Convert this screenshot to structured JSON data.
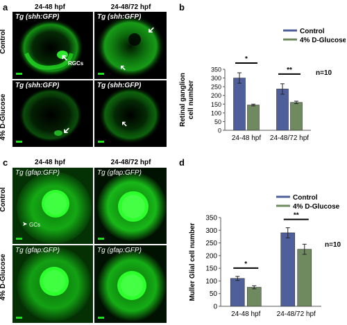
{
  "panel_a": {
    "letter": "a",
    "col_headers": [
      "24-48 hpf",
      "24-48/72 hpf"
    ],
    "row_labels": [
      "Control",
      "4% D-Glucose"
    ],
    "tiles": [
      {
        "title": "Tg (shh:GFP)",
        "annotation": "RGCs"
      },
      {
        "title": "Tg (shh:GFP)",
        "annotation": ""
      },
      {
        "title": "Tg (shh:GFP)",
        "annotation": ""
      },
      {
        "title": "Tg (shh:GFP)",
        "annotation": ""
      }
    ]
  },
  "panel_c": {
    "letter": "c",
    "col_headers": [
      "24-48 hpf",
      "24-48/72 hpf"
    ],
    "row_labels": [
      "Control",
      "4% D-Glucose"
    ],
    "tiles": [
      {
        "title_prefix": "Tg (",
        "title_gene": "gfap:GFP",
        "title_suffix": ")",
        "annotation": "GCs"
      },
      {
        "title_prefix": "Tg (",
        "title_gene": "gfap:GFP",
        "title_suffix": ")",
        "annotation": ""
      },
      {
        "title_prefix": "Tg (",
        "title_gene": "gfap:GFP",
        "title_suffix": ")",
        "annotation": ""
      },
      {
        "title_prefix": "Tg (",
        "title_gene": "gfap:GFP",
        "title_suffix": ")",
        "annotation": ""
      }
    ]
  },
  "panel_b": {
    "letter": "b",
    "n_label": "n=10"
  },
  "panel_d": {
    "letter": "d",
    "n_label": "n=10"
  },
  "colors": {
    "control": "#4e5f9c",
    "glucose": "#6e8a5e",
    "gfp": "#19e619"
  },
  "chart_data": [
    {
      "type": "bar",
      "panel": "b",
      "categories": [
        "24-48 hpf",
        "24-48/72 hpf"
      ],
      "series": [
        {
          "name": "Control",
          "values": [
            300,
            237
          ],
          "errors": [
            30,
            30
          ]
        },
        {
          "name": "4% D-Glucose",
          "values": [
            145,
            160
          ],
          "errors": [
            5,
            7
          ]
        }
      ],
      "significance": [
        "*",
        "**"
      ],
      "ylabel": "Retinal ganglion cell number",
      "ylim": [
        0,
        350
      ],
      "yticks": [
        0,
        50,
        100,
        150,
        200,
        250,
        300,
        350
      ],
      "legend_position": "top"
    },
    {
      "type": "bar",
      "panel": "d",
      "categories": [
        "24-48 hpf",
        "24-48/72 hpf"
      ],
      "series": [
        {
          "name": "Control",
          "values": [
            110,
            290
          ],
          "errors": [
            8,
            20
          ]
        },
        {
          "name": "4% D-Glucose",
          "values": [
            75,
            225
          ],
          "errors": [
            6,
            20
          ]
        }
      ],
      "significance": [
        "*",
        "**"
      ],
      "ylabel": "Muller Glial cell number",
      "ylim": [
        0,
        350
      ],
      "yticks": [
        0,
        50,
        100,
        150,
        200,
        250,
        300,
        350
      ],
      "legend_position": "top"
    }
  ]
}
